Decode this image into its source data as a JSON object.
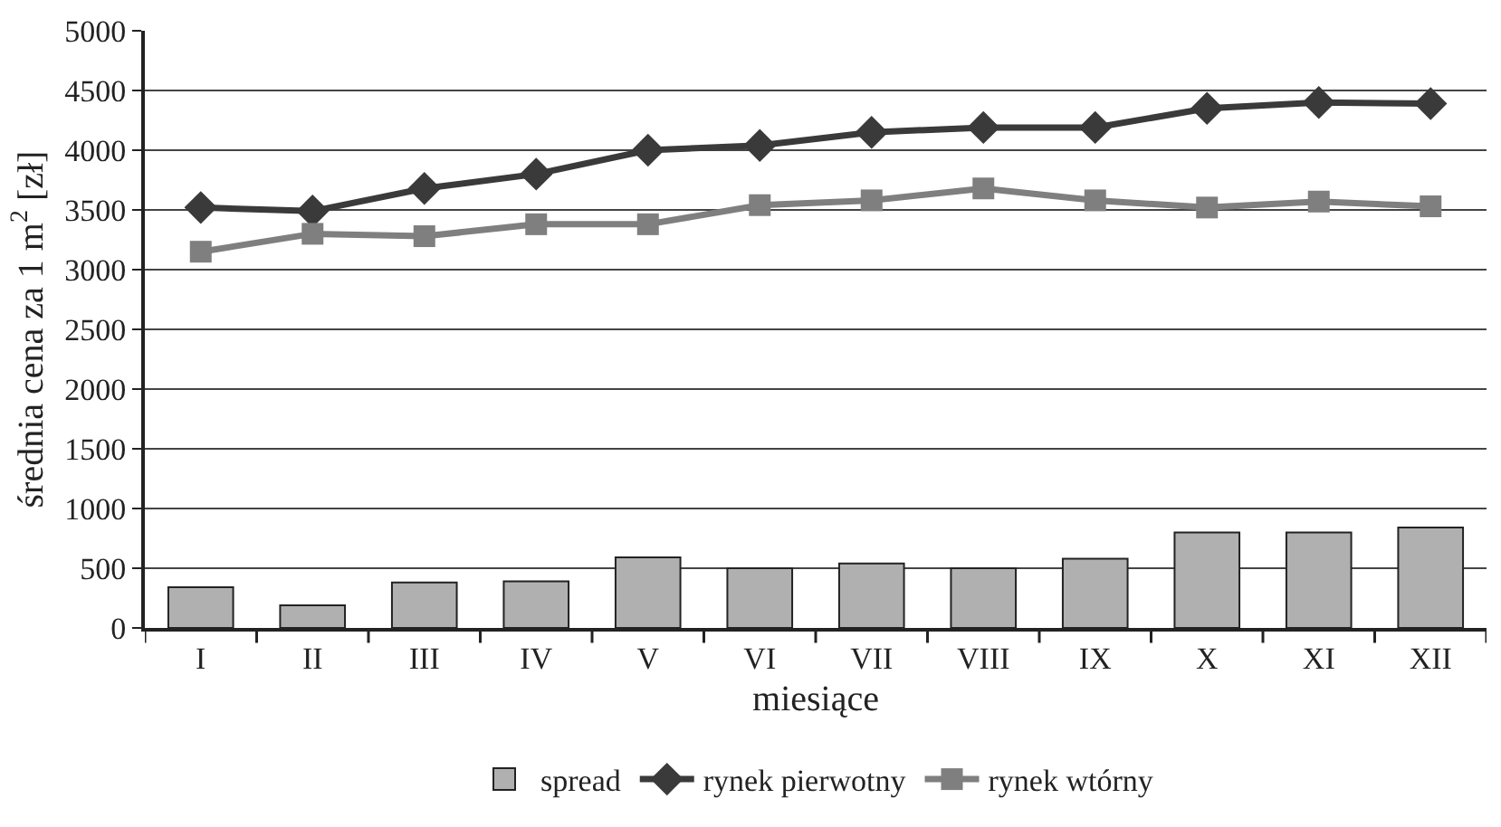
{
  "chart_data": {
    "type": "bar",
    "categories": [
      "I",
      "II",
      "III",
      "IV",
      "V",
      "VI",
      "VII",
      "VIII",
      "IX",
      "X",
      "XI",
      "XII"
    ],
    "xlabel": "miesiące",
    "ylabel": "średnia cena za 1 m$^{2}$ [zł]",
    "series": [
      {
        "name": "spread",
        "color": "#b0b0b0",
        "values": [
          340,
          190,
          380,
          390,
          590,
          500,
          540,
          500,
          580,
          800,
          800,
          840
        ]
      },
      {
        "name": "rynek pierwotny",
        "type": "line",
        "marker": "diamond",
        "color": "#3a3a3a",
        "values": [
          3520,
          3490,
          3680,
          3800,
          4000,
          4040,
          4150,
          4190,
          4190,
          4350,
          4400,
          4390
        ]
      },
      {
        "name": "rynek wtórny",
        "type": "line",
        "marker": "square",
        "color": "#7f7f7f",
        "values": [
          3150,
          3300,
          3280,
          3380,
          3380,
          3540,
          3580,
          3680,
          3580,
          3520,
          3570,
          3530
        ]
      }
    ],
    "ylim": [
      0,
      5000
    ],
    "yticks": [
      0,
      500,
      1000,
      1500,
      2000,
      2500,
      3000,
      3500,
      4000,
      4500,
      5000
    ],
    "grid": "y",
    "legend": "bottom"
  }
}
